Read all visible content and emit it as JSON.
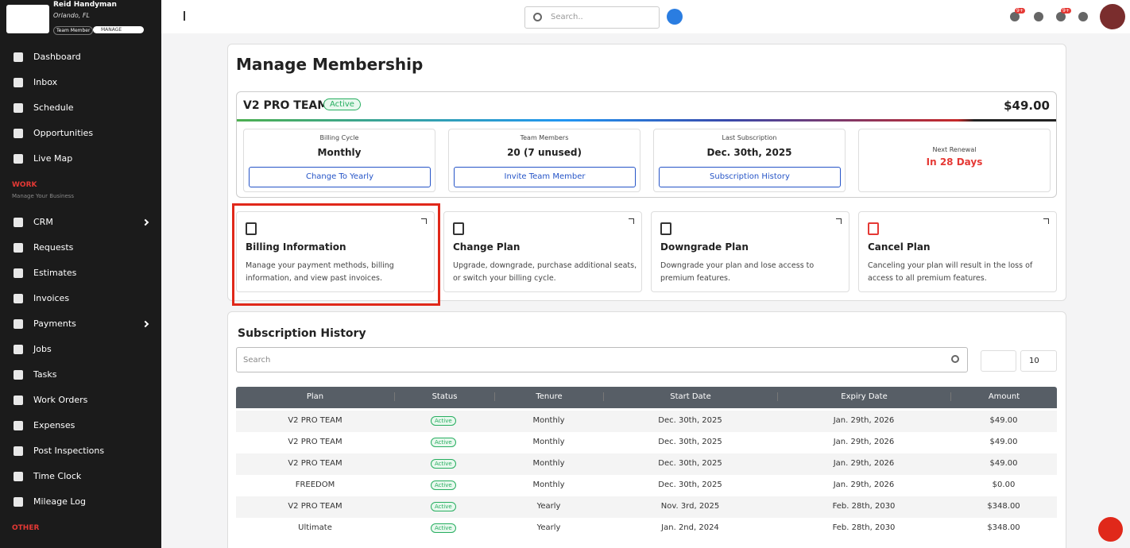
{
  "sidebar": {
    "company": "Reid Handyman",
    "location": "Orlando, FL",
    "role": "Team Member",
    "manage": "MANAGE",
    "nav": [
      {
        "label": "Dashboard"
      },
      {
        "label": "Inbox"
      },
      {
        "label": "Schedule"
      },
      {
        "label": "Opportunities"
      },
      {
        "label": "Live Map"
      }
    ],
    "work_label": "WORK",
    "work_subtitle": "Manage Your Business",
    "work_items": [
      {
        "label": "CRM",
        "expandable": true
      },
      {
        "label": "Requests"
      },
      {
        "label": "Estimates"
      },
      {
        "label": "Invoices"
      },
      {
        "label": "Payments",
        "expandable": true
      },
      {
        "label": "Jobs"
      },
      {
        "label": "Tasks"
      },
      {
        "label": "Work Orders"
      },
      {
        "label": "Expenses"
      },
      {
        "label": "Post Inspections"
      },
      {
        "label": "Time Clock"
      },
      {
        "label": "Mileage Log"
      }
    ],
    "other_label": "OTHER"
  },
  "topbar": {
    "search_placeholder": "Search..",
    "badges": [
      "9+",
      "9+"
    ]
  },
  "membership": {
    "title": "Manage Membership",
    "plan": "V2 PRO TEAM",
    "status": "Active",
    "price": "$49.00",
    "stats": [
      {
        "label": "Billing Cycle",
        "value": "Monthly",
        "button": "Change To Yearly"
      },
      {
        "label": "Team Members",
        "value": "20 (7 unused)",
        "button": "Invite Team Member"
      },
      {
        "label": "Last Subscription",
        "value": "Dec. 30th, 2025",
        "button": "Subscription History"
      },
      {
        "label": "Next Renewal",
        "value": "In 28 Days"
      }
    ]
  },
  "actions": [
    {
      "title": "Billing Information",
      "description": "Manage your payment methods, billing information, and view past invoices."
    },
    {
      "title": "Change Plan",
      "description": "Upgrade, downgrade, purchase additional seats, or switch your billing cycle."
    },
    {
      "title": "Downgrade Plan",
      "description": "Downgrade your plan and lose access to premium features."
    },
    {
      "title": "Cancel Plan",
      "description": "Canceling your plan will result in the loss of access to all premium features."
    }
  ],
  "history": {
    "title": "Subscription History",
    "search_placeholder": "Search",
    "page_size": "10",
    "columns": [
      "Plan",
      "Status",
      "Tenure",
      "Start Date",
      "Expiry Date",
      "Amount"
    ],
    "rows": [
      [
        "V2 PRO TEAM",
        "Active",
        "Monthly",
        "Dec. 30th, 2025",
        "Jan. 29th, 2026",
        "$49.00"
      ],
      [
        "V2 PRO TEAM",
        "Active",
        "Monthly",
        "Dec. 30th, 2025",
        "Jan. 29th, 2026",
        "$49.00"
      ],
      [
        "V2 PRO TEAM",
        "Active",
        "Monthly",
        "Dec. 30th, 2025",
        "Jan. 29th, 2026",
        "$49.00"
      ],
      [
        "FREEDOM",
        "Active",
        "Monthly",
        "Dec. 30th, 2025",
        "Jan. 29th, 2026",
        "$0.00"
      ],
      [
        "V2 PRO TEAM",
        "Active",
        "Yearly",
        "Nov. 3rd, 2025",
        "Feb. 28th, 2030",
        "$348.00"
      ],
      [
        "Ultimate",
        "Active",
        "Yearly",
        "Jan. 2nd, 2024",
        "Feb. 28th, 2030",
        "$348.00"
      ]
    ]
  }
}
